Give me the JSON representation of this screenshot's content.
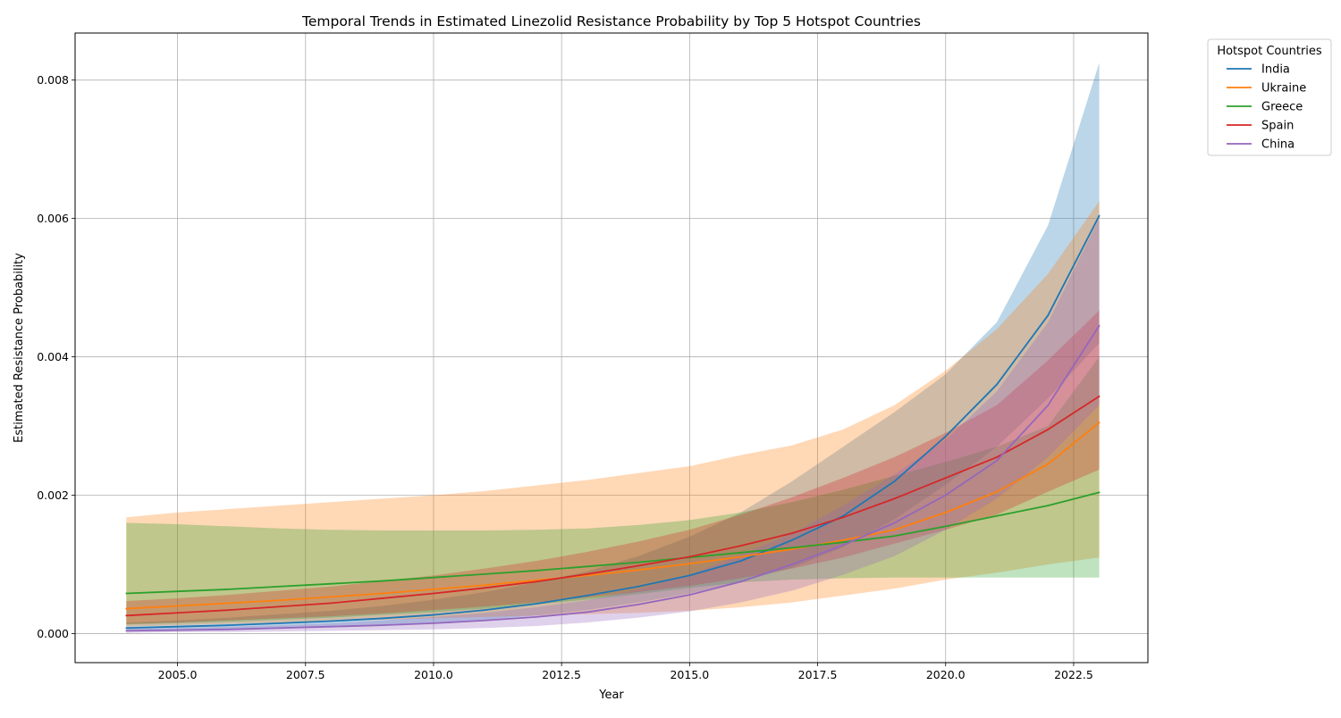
{
  "chart_data": {
    "type": "line",
    "title": "Temporal Trends in Estimated Linezolid Resistance Probability by Top 5 Hotspot Countries",
    "xlabel": "Year",
    "ylabel": "Estimated Resistance Probability",
    "xlim": [
      2003.0,
      2023.95
    ],
    "ylim": [
      -0.00042,
      0.00868
    ],
    "xticks": [
      2005.0,
      2007.5,
      2010.0,
      2012.5,
      2015.0,
      2017.5,
      2020.0,
      2022.5
    ],
    "xtick_labels": [
      "2005.0",
      "2007.5",
      "2010.0",
      "2012.5",
      "2015.0",
      "2017.5",
      "2020.0",
      "2022.5"
    ],
    "yticks": [
      0.0,
      0.002,
      0.004,
      0.006,
      0.008
    ],
    "ytick_labels": [
      "0.000",
      "0.002",
      "0.004",
      "0.006",
      "0.008"
    ],
    "grid": true,
    "legend": {
      "title": "Hotspot Countries",
      "placement": "outside top-right"
    },
    "x": [
      2004,
      2005,
      2006,
      2007,
      2008,
      2009,
      2010,
      2011,
      2012,
      2013,
      2014,
      2015,
      2016,
      2017,
      2018,
      2019,
      2020,
      2021,
      2022,
      2023
    ],
    "series": [
      {
        "name": "India",
        "color": "#1f77b4",
        "band_color": "#1f77b4",
        "values": [
          8e-05,
          0.0001,
          0.00012,
          0.00015,
          0.00018,
          0.00022,
          0.00027,
          0.00034,
          0.00043,
          0.00055,
          0.00068,
          0.00084,
          0.00105,
          0.00135,
          0.0017,
          0.0022,
          0.00285,
          0.0036,
          0.0046,
          0.00604
        ],
        "lower": [
          4e-05,
          5e-05,
          6e-05,
          8e-05,
          0.0001,
          0.00013,
          0.00016,
          0.0002,
          0.00026,
          0.00034,
          0.00045,
          0.00058,
          0.00075,
          0.00095,
          0.00125,
          0.00165,
          0.00215,
          0.0027,
          0.0034,
          0.0042
        ],
        "upper": [
          0.00016,
          0.00019,
          0.00023,
          0.00028,
          0.00033,
          0.0004,
          0.00049,
          0.0006,
          0.00074,
          0.0009,
          0.00112,
          0.0014,
          0.00175,
          0.0022,
          0.0027,
          0.0032,
          0.00375,
          0.0045,
          0.0059,
          0.00825
        ]
      },
      {
        "name": "Ukraine",
        "color": "#ff7f0e",
        "band_color": "#ff7f0e",
        "values": [
          0.00036,
          0.0004,
          0.00044,
          0.00048,
          0.00053,
          0.00058,
          0.00064,
          0.0007,
          0.00077,
          0.00084,
          0.00092,
          0.00101,
          0.00111,
          0.00122,
          0.00135,
          0.0015,
          0.00175,
          0.00205,
          0.00245,
          0.00305
        ],
        "lower": [
          0.0001,
          0.00012,
          0.00014,
          0.00016,
          0.00018,
          0.0002,
          0.00022,
          0.00024,
          0.00026,
          0.00028,
          0.0003,
          0.00033,
          0.00038,
          0.00045,
          0.00055,
          0.00065,
          0.00078,
          0.00088,
          0.001,
          0.0011
        ],
        "upper": [
          0.00168,
          0.00175,
          0.0018,
          0.00185,
          0.0019,
          0.00195,
          0.002,
          0.00206,
          0.00214,
          0.00222,
          0.00232,
          0.00242,
          0.00258,
          0.00272,
          0.00295,
          0.0033,
          0.0038,
          0.0044,
          0.0052,
          0.00625
        ]
      },
      {
        "name": "Greece",
        "color": "#2ca02c",
        "band_color": "#2ca02c",
        "values": [
          0.00058,
          0.00061,
          0.00064,
          0.00068,
          0.00072,
          0.00076,
          0.00081,
          0.00086,
          0.00091,
          0.00097,
          0.00103,
          0.0011,
          0.00117,
          0.00124,
          0.00132,
          0.00141,
          0.00155,
          0.0017,
          0.00185,
          0.00204
        ],
        "lower": [
          0.00013,
          0.00015,
          0.00017,
          0.0002,
          0.00023,
          0.00027,
          0.00031,
          0.00036,
          0.00042,
          0.00049,
          0.00057,
          0.00066,
          0.00074,
          0.00078,
          0.0008,
          0.00081,
          0.00081,
          0.00081,
          0.00081,
          0.00081
        ],
        "upper": [
          0.0016,
          0.00158,
          0.00155,
          0.00152,
          0.0015,
          0.00149,
          0.00149,
          0.00149,
          0.0015,
          0.00152,
          0.00157,
          0.00164,
          0.00175,
          0.0019,
          0.00208,
          0.00228,
          0.00248,
          0.0027,
          0.003,
          0.004
        ]
      },
      {
        "name": "Spain",
        "color": "#d62728",
        "band_color": "#d62728",
        "values": [
          0.00026,
          0.0003,
          0.00034,
          0.00039,
          0.00044,
          0.00051,
          0.00058,
          0.00066,
          0.00075,
          0.00086,
          0.00098,
          0.00111,
          0.00127,
          0.00145,
          0.00168,
          0.00195,
          0.00225,
          0.00255,
          0.00295,
          0.00343
        ],
        "lower": [
          0.00014,
          0.00016,
          0.00019,
          0.00022,
          0.00025,
          0.00029,
          0.00034,
          0.00039,
          0.00045,
          0.00052,
          0.0006,
          0.00069,
          0.0008,
          0.00094,
          0.0011,
          0.0013,
          0.0015,
          0.00172,
          0.00205,
          0.00237
        ],
        "upper": [
          0.00047,
          0.00051,
          0.00056,
          0.00062,
          0.00068,
          0.00076,
          0.00084,
          0.00094,
          0.00105,
          0.00118,
          0.00133,
          0.0015,
          0.00172,
          0.00197,
          0.00225,
          0.00255,
          0.0029,
          0.0033,
          0.00395,
          0.00467
        ]
      },
      {
        "name": "China",
        "color": "#9467bd",
        "band_color": "#9467bd",
        "values": [
          4e-05,
          5e-05,
          6e-05,
          8e-05,
          0.0001,
          0.00012,
          0.00015,
          0.00019,
          0.00024,
          0.00031,
          0.00042,
          0.00056,
          0.00075,
          0.001,
          0.00128,
          0.0016,
          0.002,
          0.0025,
          0.0033,
          0.00445
        ],
        "lower": [
          1e-05,
          2e-05,
          2e-05,
          3e-05,
          4e-05,
          5e-05,
          6e-05,
          8e-05,
          0.00011,
          0.00016,
          0.00023,
          0.00032,
          0.00045,
          0.00062,
          0.00085,
          0.00112,
          0.0015,
          0.00195,
          0.00255,
          0.0033
        ],
        "upper": [
          7e-05,
          8e-05,
          0.0001,
          0.00012,
          0.00015,
          0.00019,
          0.00024,
          0.0003,
          0.00038,
          0.00048,
          0.00064,
          0.00085,
          0.00114,
          0.00145,
          0.00185,
          0.0023,
          0.0028,
          0.0035,
          0.0045,
          0.006
        ]
      }
    ]
  }
}
